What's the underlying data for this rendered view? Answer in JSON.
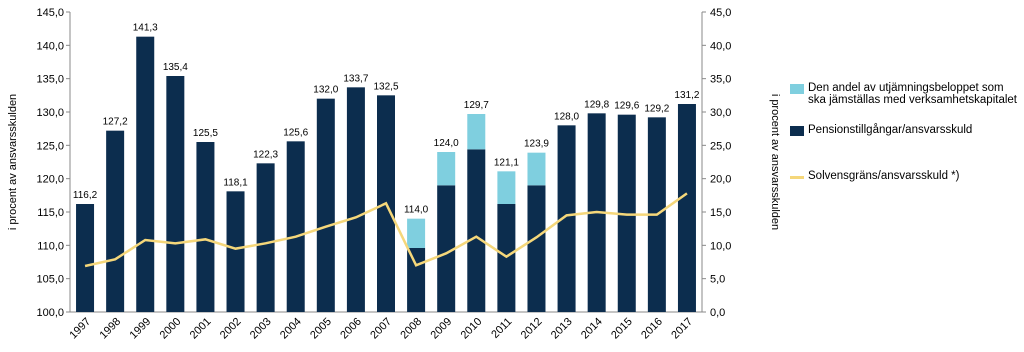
{
  "chart_data": {
    "type": "bar",
    "stacked": true,
    "y_label": "i procent av ansvarsskulden",
    "y2_label": "i procent av ansvarsskulden",
    "categories": [
      "1997",
      "1998",
      "1999",
      "2000",
      "2001",
      "2002",
      "2003",
      "2004",
      "2005",
      "2006",
      "2007",
      "2008",
      "2009",
      "2010",
      "2011",
      "2012",
      "2013",
      "2014",
      "2015",
      "2016",
      "2017"
    ],
    "series": [
      {
        "name": "Pensionstillgångar/ansvarsskuld",
        "color": "#0c2d4e",
        "values": [
          116.2,
          127.2,
          141.3,
          135.4,
          125.5,
          118.1,
          122.3,
          125.6,
          132.0,
          133.7,
          132.5,
          109.6,
          119.0,
          124.4,
          116.2,
          119.0,
          128.0,
          129.8,
          129.6,
          129.2,
          131.2
        ]
      },
      {
        "name": "Den andel av utjämningsbeloppet som ska jämställas med verksamhetskapitalet",
        "color": "#7fcfdf",
        "values": [
          null,
          null,
          null,
          null,
          null,
          null,
          null,
          null,
          null,
          null,
          null,
          4.4,
          5.0,
          5.3,
          4.9,
          4.9,
          null,
          null,
          null,
          null,
          null
        ]
      },
      {
        "name": "Solvensgräns/ansvarsskuld *)",
        "color": "#f5d77a",
        "type": "line",
        "axis": "y2",
        "values": [
          6.9,
          7.9,
          10.8,
          10.3,
          10.9,
          9.5,
          10.3,
          11.3,
          12.8,
          14.2,
          16.3,
          7.0,
          8.8,
          11.3,
          8.3,
          11.2,
          14.5,
          15.0,
          14.6,
          14.6,
          17.8
        ]
      }
    ],
    "totals": [
      116.2,
      127.2,
      141.3,
      135.4,
      125.5,
      118.1,
      122.3,
      125.6,
      132.0,
      133.7,
      132.5,
      114.0,
      124.0,
      129.7,
      121.1,
      123.9,
      128.0,
      129.8,
      129.6,
      129.2,
      131.2
    ],
    "total_labels": [
      "116,2",
      "127,2",
      "141,3",
      "135,4",
      "125,5",
      "118,1",
      "122,3",
      "125,6",
      "132,0",
      "133,7",
      "132,5",
      "114,0",
      "124,0",
      "129,7",
      "121,1",
      "123,9",
      "128,0",
      "129,8",
      "129,6",
      "129,2",
      "131,2"
    ],
    "ylim": [
      100,
      145
    ],
    "yticks": [
      {
        "value": 100,
        "label": "100,0"
      },
      {
        "value": 105,
        "label": "105,0"
      },
      {
        "value": 110,
        "label": "110,0"
      },
      {
        "value": 115,
        "label": "115,0"
      },
      {
        "value": 120,
        "label": "120,0"
      },
      {
        "value": 125,
        "label": "125,0"
      },
      {
        "value": 130,
        "label": "130,0"
      },
      {
        "value": 135,
        "label": "135,0"
      },
      {
        "value": 140,
        "label": "140,0"
      },
      {
        "value": 145,
        "label": "145,0"
      }
    ],
    "y2lim": [
      0,
      45
    ],
    "y2ticks": [
      {
        "value": 0,
        "label": "0,0"
      },
      {
        "value": 5,
        "label": "5,0"
      },
      {
        "value": 10,
        "label": "10,0"
      },
      {
        "value": 15,
        "label": "15,0"
      },
      {
        "value": 20,
        "label": "20,0"
      },
      {
        "value": 25,
        "label": "25,0"
      },
      {
        "value": 30,
        "label": "30,0"
      },
      {
        "value": 35,
        "label": "35,0"
      },
      {
        "value": 40,
        "label": "40,0"
      },
      {
        "value": 45,
        "label": "45,0"
      }
    ],
    "legend": "right"
  }
}
